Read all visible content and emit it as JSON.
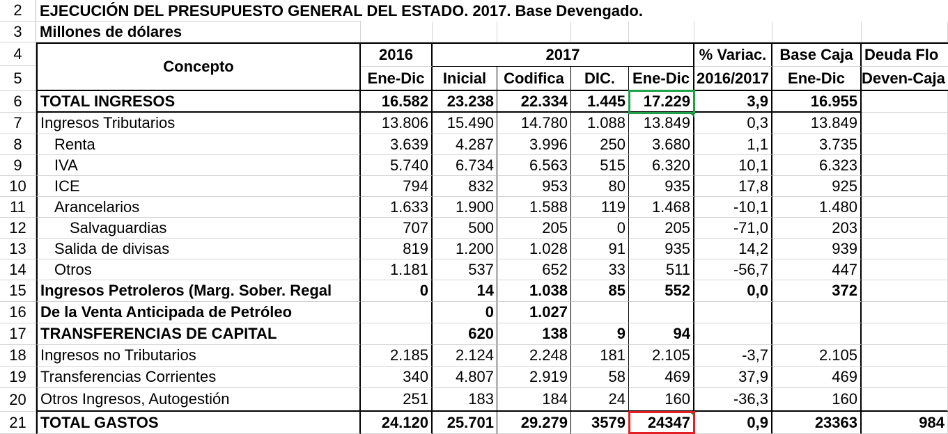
{
  "title": "EJECUCIÓN DEL PRESUPUESTO GENERAL DEL ESTADO. 2017. Base Devengado.",
  "subtitle": "Millones de dólares",
  "header": {
    "concepto": "Concepto",
    "y2016": "2016",
    "y2017": "2017",
    "variac": "% Variac.",
    "basecaja": "Base Caja",
    "deuda": "Deuda Flo",
    "sub_2016": "Ene-Dic",
    "sub_inicial": "Inicial",
    "sub_codifica": "Codifica",
    "sub_dic": "DIC.",
    "sub_enedic": "Ene-Dic",
    "sub_variac": "2016/2017",
    "sub_basecaja": "Ene-Dic",
    "sub_deuda": "Deven-Caja"
  },
  "row_numbers": [
    "2",
    "3",
    "4",
    "5",
    "6",
    "7",
    "8",
    "9",
    "10",
    "11",
    "12",
    "13",
    "14",
    "15",
    "16",
    "17",
    "18",
    "19",
    "20",
    "21"
  ],
  "rows": [
    {
      "concepto": "TOTAL INGRESOS",
      "c2016": "16.582",
      "inicial": "23.238",
      "codifica": "22.334",
      "dic": "1.445",
      "enedic": "17.229",
      "variac": "3,9",
      "basecaja": "16.955",
      "deuda": ""
    },
    {
      "concepto": "Ingresos Tributarios",
      "c2016": "13.806",
      "inicial": "15.490",
      "codifica": "14.780",
      "dic": "1.088",
      "enedic": "13.849",
      "variac": "0,3",
      "basecaja": "13.849",
      "deuda": ""
    },
    {
      "concepto": "Renta",
      "c2016": "3.639",
      "inicial": "4.287",
      "codifica": "3.996",
      "dic": "250",
      "enedic": "3.680",
      "variac": "1,1",
      "basecaja": "3.735",
      "deuda": ""
    },
    {
      "concepto": "IVA",
      "c2016": "5.740",
      "inicial": "6.734",
      "codifica": "6.563",
      "dic": "515",
      "enedic": "6.320",
      "variac": "10,1",
      "basecaja": "6.323",
      "deuda": ""
    },
    {
      "concepto": "ICE",
      "c2016": "794",
      "inicial": "832",
      "codifica": "953",
      "dic": "80",
      "enedic": "935",
      "variac": "17,8",
      "basecaja": "925",
      "deuda": ""
    },
    {
      "concepto": "Arancelarios",
      "c2016": "1.633",
      "inicial": "1.900",
      "codifica": "1.588",
      "dic": "119",
      "enedic": "1.468",
      "variac": "-10,1",
      "basecaja": "1.480",
      "deuda": ""
    },
    {
      "concepto": "Salvaguardias",
      "c2016": "707",
      "inicial": "500",
      "codifica": "205",
      "dic": "0",
      "enedic": "205",
      "variac": "-71,0",
      "basecaja": "203",
      "deuda": ""
    },
    {
      "concepto": "Salida de divisas",
      "c2016": "819",
      "inicial": "1.200",
      "codifica": "1.028",
      "dic": "91",
      "enedic": "935",
      "variac": "14,2",
      "basecaja": "939",
      "deuda": ""
    },
    {
      "concepto": "Otros",
      "c2016": "1.181",
      "inicial": "537",
      "codifica": "652",
      "dic": "33",
      "enedic": "511",
      "variac": "-56,7",
      "basecaja": "447",
      "deuda": ""
    },
    {
      "concepto": "Ingresos Petroleros (Marg. Sober. Regal",
      "c2016": "0",
      "inicial": "14",
      "codifica": "1.038",
      "dic": "85",
      "enedic": "552",
      "variac": "0,0",
      "basecaja": "372",
      "deuda": ""
    },
    {
      "concepto": "De la Venta Anticipada de Petróleo",
      "c2016": "",
      "inicial": "0",
      "codifica": "1.027",
      "dic": "",
      "enedic": "",
      "variac": "",
      "basecaja": "",
      "deuda": ""
    },
    {
      "concepto": "TRANSFERENCIAS DE CAPITAL",
      "c2016": "",
      "inicial": "620",
      "codifica": "138",
      "dic": "9",
      "enedic": "94",
      "variac": "",
      "basecaja": "",
      "deuda": ""
    },
    {
      "concepto": "Ingresos no Tributarios",
      "c2016": "2.185",
      "inicial": "2.124",
      "codifica": "2.248",
      "dic": "181",
      "enedic": "2.105",
      "variac": "-3,7",
      "basecaja": "2.105",
      "deuda": ""
    },
    {
      "concepto": "Transferencias Corrientes",
      "c2016": "340",
      "inicial": "4.807",
      "codifica": "2.919",
      "dic": "58",
      "enedic": "469",
      "variac": "37,9",
      "basecaja": "469",
      "deuda": ""
    },
    {
      "concepto": "Otros Ingresos, Autogestión",
      "c2016": "251",
      "inicial": "183",
      "codifica": "184",
      "dic": "24",
      "enedic": "160",
      "variac": "-36,3",
      "basecaja": "160",
      "deuda": ""
    },
    {
      "concepto": "TOTAL GASTOS",
      "c2016": "24.120",
      "inicial": "25.701",
      "codifica": "29.279",
      "dic": "3579",
      "enedic": "24347",
      "variac": "0,9",
      "basecaja": "23363",
      "deuda": "984"
    }
  ]
}
